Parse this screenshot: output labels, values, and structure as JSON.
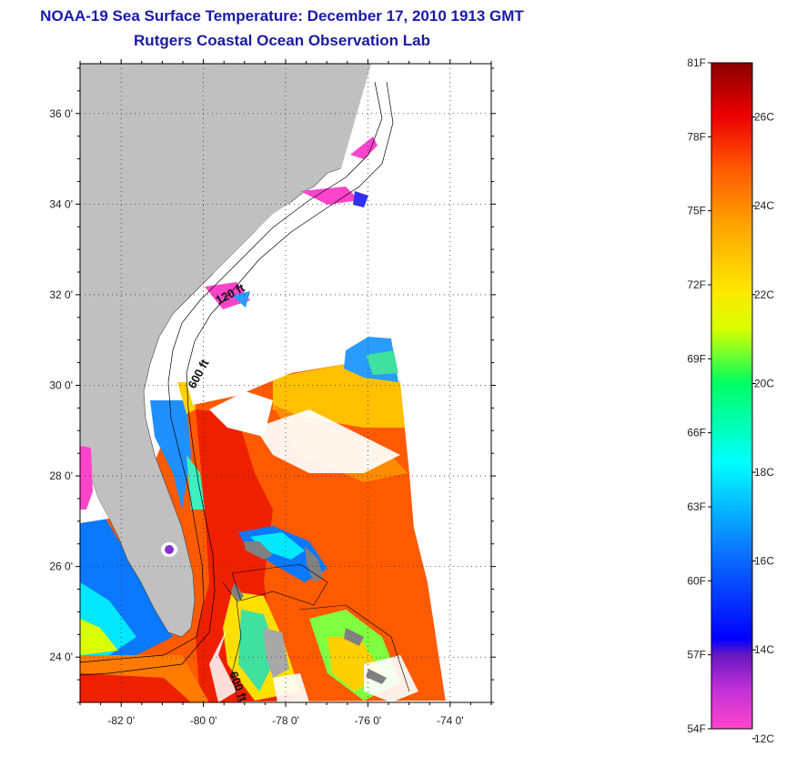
{
  "title": "NOAA-19 Sea Surface Temperature:  December 17, 2010 1913 GMT",
  "subtitle": "Rutgers Coastal Ocean Observation Lab",
  "axes": {
    "lat_ticks": [
      {
        "value": 36,
        "label": "36 0'"
      },
      {
        "value": 34,
        "label": "34 0'"
      },
      {
        "value": 32,
        "label": "32 0'"
      },
      {
        "value": 30,
        "label": "30 0'"
      },
      {
        "value": 28,
        "label": "28 0'"
      },
      {
        "value": 26,
        "label": "26 0'"
      },
      {
        "value": 24,
        "label": "24 0'"
      }
    ],
    "lon_ticks": [
      {
        "value": -82,
        "label": "-82 0'"
      },
      {
        "value": -80,
        "label": "-80 0'"
      },
      {
        "value": -78,
        "label": "-78 0'"
      },
      {
        "value": -76,
        "label": "-76 0'"
      },
      {
        "value": -74,
        "label": "-74 0'"
      }
    ],
    "lat_range": [
      23.0,
      37.1
    ],
    "lon_range": [
      -83.0,
      -73.0
    ],
    "grid": "dotted"
  },
  "contours": [
    {
      "label": "120 ft"
    },
    {
      "label": "600 ft"
    },
    {
      "label": "600 ft"
    }
  ],
  "colorbar": {
    "fahrenheit": [
      "81F",
      "78F",
      "75F",
      "72F",
      "69F",
      "66F",
      "63F",
      "60F",
      "57F",
      "54F"
    ],
    "celsius": [
      "26C",
      "24C",
      "22C",
      "20C",
      "18C",
      "16C",
      "14C",
      "12C"
    ],
    "range_f": [
      54,
      81
    ],
    "colors": [
      "#ff44cc",
      "#7a18c8",
      "#0000ff",
      "#0a78ff",
      "#00ffff",
      "#00ff66",
      "#d8ff00",
      "#ffe600",
      "#ffa000",
      "#ff5a00",
      "#ee0000",
      "#8a0000"
    ]
  },
  "colors": {
    "land": "#c0c0c0",
    "cloud": "#ffffff",
    "title": "#1a1aa8"
  }
}
